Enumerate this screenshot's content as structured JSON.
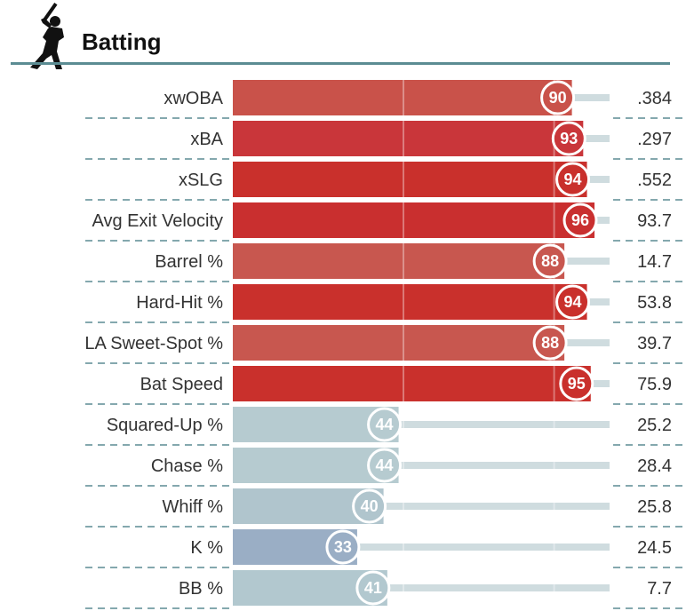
{
  "header": {
    "title": "Batting",
    "icon": "batter-silhouette-icon"
  },
  "colors": {
    "high_bar": "#c9302c",
    "low_bar": "#b7cdd3",
    "track": "#cfdcdf",
    "dash": "#5b8c93",
    "header_rule": "#5b8c93"
  },
  "chart_data": {
    "type": "bar",
    "title": "Batting",
    "xlim": [
      0,
      100
    ],
    "grid": true,
    "legend": "none",
    "categories": [
      "xwOBA",
      "xBA",
      "xSLG",
      "Avg Exit Velocity",
      "Barrel %",
      "Hard-Hit %",
      "LA Sweet-Spot %",
      "Bat Speed",
      "Squared-Up %",
      "Chase %",
      "Whiff %",
      "K %",
      "BB %"
    ],
    "series": [
      {
        "values": [
          90,
          93,
          94,
          96,
          88,
          94,
          88,
          95,
          44,
          44,
          40,
          33,
          41
        ]
      }
    ],
    "stat_values": [
      ".384",
      ".297",
      ".552",
      "93.7",
      "14.7",
      "53.8",
      "39.7",
      "75.9",
      "25.2",
      "28.4",
      "25.8",
      "24.5",
      "7.7"
    ],
    "bar_colors": [
      "#c9524a",
      "#c9363a",
      "#c9302c",
      "#c92f2f",
      "#c8574f",
      "#c9302c",
      "#c8574f",
      "#c9302c",
      "#b6cbd0",
      "#b6cbd0",
      "#b0c5cd",
      "#9aaec5",
      "#b2c8cf"
    ]
  }
}
